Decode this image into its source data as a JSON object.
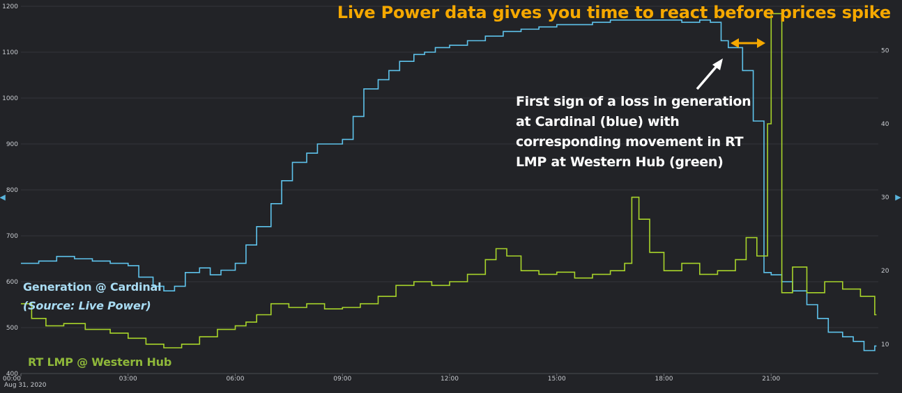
{
  "headline": "Live Power data gives you time to react before prices spike",
  "annotation_lines": [
    "First sign of a loss in generation",
    "at Cardinal (blue) with",
    "corresponding movement in RT",
    "LMP at Western Hub (green)"
  ],
  "labels": {
    "generation": "Generation @ Cardinal",
    "source": "(Source: Live Power)",
    "lmp": "RT LMP @ Western Hub"
  },
  "nav": {
    "left": "◂",
    "right": "▸"
  },
  "colors": {
    "background": "#222327",
    "generation": "#5ec3ec",
    "lmp": "#a8d42a",
    "headline": "#f5a800",
    "gap_arrow": "#f5a800",
    "pointer_arrow": "#ffffff"
  },
  "chart_data": {
    "type": "line",
    "x_tick_labels": [
      "00:00",
      "03:00",
      "06:00",
      "09:00",
      "12:00",
      "15:00",
      "18:00",
      "21:00"
    ],
    "x_ticks_hours": [
      0,
      3,
      6,
      9,
      12,
      15,
      18,
      21
    ],
    "date_label": "Aug 31, 2020",
    "xlim_hours": [
      0,
      24
    ],
    "y_left": {
      "ticks": [
        400,
        500,
        600,
        700,
        800,
        900,
        1000,
        1100,
        1200
      ],
      "range": [
        400,
        1200
      ]
    },
    "y_right": {
      "ticks": [
        10,
        20,
        30,
        40,
        50
      ],
      "range": [
        6,
        56
      ]
    },
    "grid": true,
    "series": [
      {
        "name": "Generation @ Cardinal",
        "axis": "left",
        "step": true,
        "x_hours": [
          0,
          0.5,
          1,
          1.5,
          2,
          2.5,
          3,
          3.3,
          3.7,
          4,
          4.3,
          4.6,
          5,
          5.3,
          5.6,
          6,
          6.3,
          6.6,
          7,
          7.3,
          7.6,
          8,
          8.3,
          8.6,
          9,
          9.3,
          9.6,
          10,
          10.3,
          10.6,
          11,
          11.3,
          11.6,
          12,
          12.5,
          13,
          13.5,
          14,
          14.5,
          15,
          15.5,
          16,
          16.5,
          17,
          17.5,
          18,
          18.5,
          19,
          19.3,
          19.6,
          19.8,
          20.2,
          20.5,
          20.8,
          21,
          21.3,
          21.6,
          22,
          22.3,
          22.6,
          23,
          23.3,
          23.6,
          23.9
        ],
        "values": [
          640,
          645,
          655,
          650,
          645,
          640,
          635,
          610,
          590,
          580,
          590,
          620,
          630,
          615,
          625,
          640,
          680,
          720,
          770,
          820,
          860,
          880,
          900,
          900,
          910,
          960,
          1020,
          1040,
          1060,
          1080,
          1095,
          1100,
          1110,
          1115,
          1125,
          1135,
          1145,
          1150,
          1155,
          1160,
          1160,
          1165,
          1170,
          1170,
          1170,
          1170,
          1165,
          1170,
          1165,
          1125,
          1110,
          1060,
          950,
          620,
          615,
          600,
          580,
          550,
          520,
          490,
          480,
          470,
          450,
          460
        ]
      },
      {
        "name": "RT LMP @ Western Hub",
        "axis": "right",
        "step": true,
        "x_hours": [
          0,
          0.3,
          0.7,
          1.2,
          1.8,
          2.5,
          3,
          3.5,
          4,
          4.5,
          5,
          5.5,
          6,
          6.3,
          6.6,
          7,
          7.5,
          8,
          8.5,
          9,
          9.5,
          10,
          10.5,
          11,
          11.5,
          12,
          12.5,
          13,
          13.3,
          13.6,
          14,
          14.5,
          15,
          15.5,
          16,
          16.5,
          16.9,
          17.1,
          17.3,
          17.6,
          18,
          18.5,
          19,
          19.5,
          20,
          20.3,
          20.6,
          20.9,
          21,
          21.3,
          21.6,
          22,
          22.5,
          23,
          23.5,
          23.9
        ],
        "values": [
          15.5,
          13.5,
          12.5,
          12.8,
          12.0,
          11.5,
          10.8,
          10.0,
          9.5,
          10.0,
          11.0,
          12.0,
          12.5,
          13.0,
          14.0,
          15.5,
          15.0,
          15.5,
          14.8,
          15.0,
          15.5,
          16.5,
          18.0,
          18.5,
          18.0,
          18.5,
          19.5,
          21.5,
          23.0,
          22.0,
          20.0,
          19.5,
          19.8,
          19.0,
          19.5,
          20.0,
          21.0,
          30.0,
          27.0,
          22.5,
          20.0,
          21.0,
          19.5,
          20.0,
          21.5,
          24.5,
          22.0,
          40.0,
          55.0,
          17.0,
          20.5,
          17.0,
          18.5,
          17.5,
          16.5,
          14.0
        ]
      }
    ]
  }
}
